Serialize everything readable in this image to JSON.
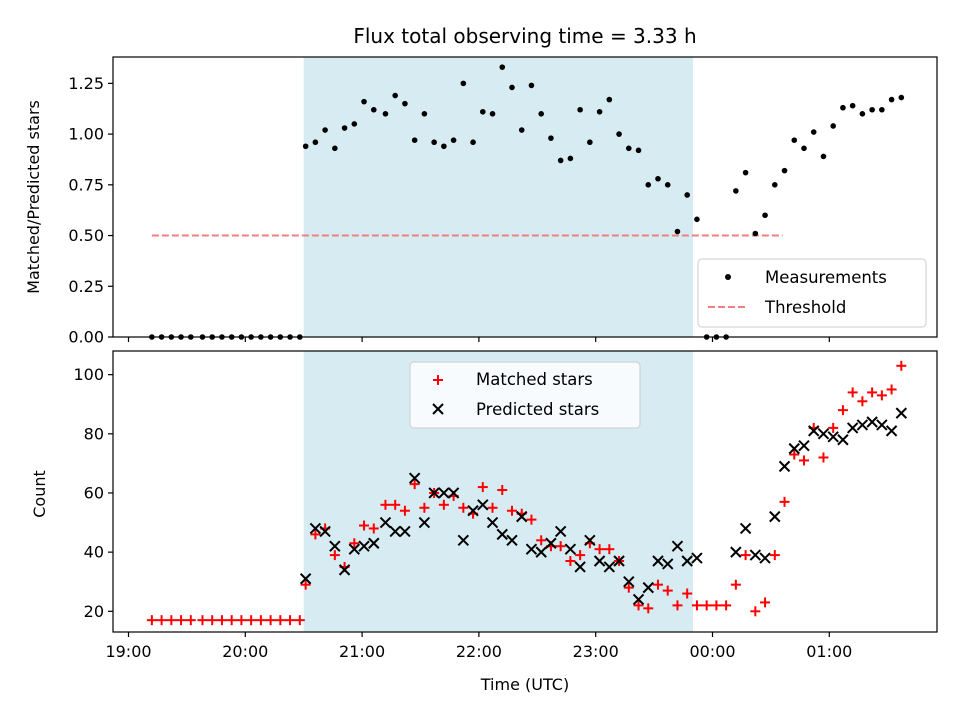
{
  "chart_data": [
    {
      "type": "scatter",
      "title": "Flux total observing time = 3.33 h",
      "xlabel": "",
      "ylabel": "Matched/Predicted stars",
      "ylim": [
        0,
        1.38
      ],
      "yticks": [
        "0.00",
        "0.25",
        "0.50",
        "0.75",
        "1.00",
        "1.25"
      ],
      "shaded_span": [
        "20:30",
        "23:50"
      ],
      "legend": {
        "position": "lower-right",
        "entries": [
          "Measurements",
          "Threshold"
        ]
      },
      "threshold": {
        "name": "Threshold",
        "value": 0.5,
        "x_range": [
          "19:12",
          "00:36"
        ],
        "color": "#f08080"
      },
      "series": [
        {
          "name": "Measurements",
          "marker": "dot",
          "color": "#000000",
          "x": [
            "19:12",
            "19:17",
            "19:22",
            "19:27",
            "19:32",
            "19:38",
            "19:43",
            "19:48",
            "19:53",
            "19:58",
            "20:03",
            "20:08",
            "20:13",
            "20:18",
            "20:23",
            "20:28",
            "20:31",
            "20:36",
            "20:41",
            "20:46",
            "20:51",
            "20:56",
            "21:01",
            "21:06",
            "21:12",
            "21:17",
            "21:22",
            "21:27",
            "21:32",
            "21:37",
            "21:42",
            "21:47",
            "21:52",
            "21:57",
            "22:02",
            "22:07",
            "22:12",
            "22:17",
            "22:22",
            "22:27",
            "22:32",
            "22:37",
            "22:42",
            "22:47",
            "22:52",
            "22:57",
            "23:02",
            "23:07",
            "23:12",
            "23:17",
            "23:22",
            "23:27",
            "23:32",
            "23:37",
            "23:42",
            "23:47",
            "23:52",
            "23:57",
            "00:02",
            "00:07",
            "00:12",
            "00:17",
            "00:22",
            "00:27",
            "00:32",
            "00:37",
            "00:42",
            "00:47",
            "00:52",
            "00:57",
            "01:02",
            "01:07",
            "01:12",
            "01:17",
            "01:22",
            "01:27",
            "01:32",
            "01:37"
          ],
          "y": [
            0,
            0,
            0,
            0,
            0,
            0,
            0,
            0,
            0,
            0,
            0,
            0,
            0,
            0,
            0,
            0,
            0.94,
            0.96,
            1.02,
            0.93,
            1.03,
            1.05,
            1.16,
            1.12,
            1.1,
            1.19,
            1.15,
            0.97,
            1.1,
            0.96,
            0.94,
            0.97,
            1.25,
            0.96,
            1.11,
            1.1,
            1.33,
            1.23,
            1.02,
            1.24,
            1.1,
            0.98,
            0.87,
            0.88,
            1.12,
            0.96,
            1.11,
            1.17,
            1.0,
            0.93,
            0.92,
            0.75,
            0.78,
            0.75,
            0.52,
            0.7,
            0.58,
            0,
            0,
            0,
            0.72,
            0.81,
            0.51,
            0.6,
            0.75,
            0.82,
            0.97,
            0.93,
            1.01,
            0.89,
            1.04,
            1.13,
            1.14,
            1.1,
            1.12,
            1.12,
            1.17,
            1.18
          ]
        }
      ]
    },
    {
      "type": "scatter",
      "title": "",
      "xlabel": "Time (UTC)",
      "ylabel": "Count",
      "ylim": [
        13,
        108
      ],
      "yticks": [
        "20",
        "40",
        "60",
        "80",
        "100"
      ],
      "xticks": [
        "19:00",
        "20:00",
        "21:00",
        "22:00",
        "23:00",
        "00:00",
        "01:00"
      ],
      "shaded_span": [
        "20:30",
        "23:50"
      ],
      "legend": {
        "position": "top-center",
        "entries": [
          "Matched stars",
          "Predicted stars"
        ]
      },
      "series": [
        {
          "name": "Matched stars",
          "marker": "plus",
          "color": "#ff0000",
          "x": [
            "19:12",
            "19:17",
            "19:22",
            "19:27",
            "19:32",
            "19:38",
            "19:43",
            "19:48",
            "19:53",
            "19:58",
            "20:03",
            "20:08",
            "20:13",
            "20:18",
            "20:23",
            "20:28",
            "20:31",
            "20:36",
            "20:41",
            "20:46",
            "20:51",
            "20:56",
            "21:01",
            "21:06",
            "21:12",
            "21:17",
            "21:22",
            "21:27",
            "21:32",
            "21:37",
            "21:42",
            "21:47",
            "21:52",
            "21:57",
            "22:02",
            "22:07",
            "22:12",
            "22:17",
            "22:22",
            "22:27",
            "22:32",
            "22:37",
            "22:42",
            "22:47",
            "22:52",
            "22:57",
            "23:02",
            "23:07",
            "23:12",
            "23:17",
            "23:22",
            "23:27",
            "23:32",
            "23:37",
            "23:42",
            "23:47",
            "23:52",
            "23:57",
            "00:02",
            "00:07",
            "00:12",
            "00:17",
            "00:22",
            "00:27",
            "00:32",
            "00:37",
            "00:42",
            "00:47",
            "00:52",
            "00:57",
            "01:02",
            "01:07",
            "01:12",
            "01:17",
            "01:22",
            "01:27",
            "01:32",
            "01:37"
          ],
          "y": [
            17,
            17,
            17,
            17,
            17,
            17,
            17,
            17,
            17,
            17,
            17,
            17,
            17,
            17,
            17,
            17,
            29,
            46,
            48,
            39,
            35,
            43,
            49,
            48,
            56,
            56,
            54,
            63,
            55,
            60,
            56,
            59,
            55,
            53,
            62,
            55,
            61,
            54,
            53,
            51,
            44,
            42,
            42,
            37,
            39,
            43,
            41,
            41,
            37,
            28,
            22,
            21,
            29,
            27,
            22,
            26,
            22,
            22,
            22,
            22,
            29,
            39,
            20,
            23,
            39,
            57,
            73,
            71,
            82,
            72,
            82,
            88,
            94,
            91,
            94,
            93,
            95,
            103
          ]
        },
        {
          "name": "Predicted stars",
          "marker": "x",
          "color": "#000000",
          "x": [
            "20:31",
            "20:36",
            "20:41",
            "20:46",
            "20:51",
            "20:56",
            "21:01",
            "21:06",
            "21:12",
            "21:17",
            "21:22",
            "21:27",
            "21:32",
            "21:37",
            "21:42",
            "21:47",
            "21:52",
            "21:57",
            "22:02",
            "22:07",
            "22:12",
            "22:17",
            "22:22",
            "22:27",
            "22:32",
            "22:37",
            "22:42",
            "22:47",
            "22:52",
            "22:57",
            "23:02",
            "23:07",
            "23:12",
            "23:17",
            "23:22",
            "23:27",
            "23:32",
            "23:37",
            "23:42",
            "23:47",
            "23:52",
            "00:12",
            "00:17",
            "00:22",
            "00:27",
            "00:32",
            "00:37",
            "00:42",
            "00:47",
            "00:52",
            "00:57",
            "01:02",
            "01:07",
            "01:12",
            "01:17",
            "01:22",
            "01:27",
            "01:32",
            "01:37"
          ],
          "y": [
            31,
            48,
            47,
            42,
            34,
            41,
            42,
            43,
            50,
            47,
            47,
            65,
            50,
            60,
            60,
            60,
            44,
            54,
            56,
            50,
            46,
            44,
            52,
            41,
            40,
            43,
            47,
            41,
            35,
            44,
            37,
            35,
            37,
            30,
            24,
            28,
            37,
            36,
            42,
            37,
            38,
            40,
            48,
            39,
            38,
            52,
            69,
            75,
            76,
            81,
            80,
            79,
            78,
            82,
            83,
            84,
            83,
            81,
            87
          ]
        }
      ]
    }
  ]
}
